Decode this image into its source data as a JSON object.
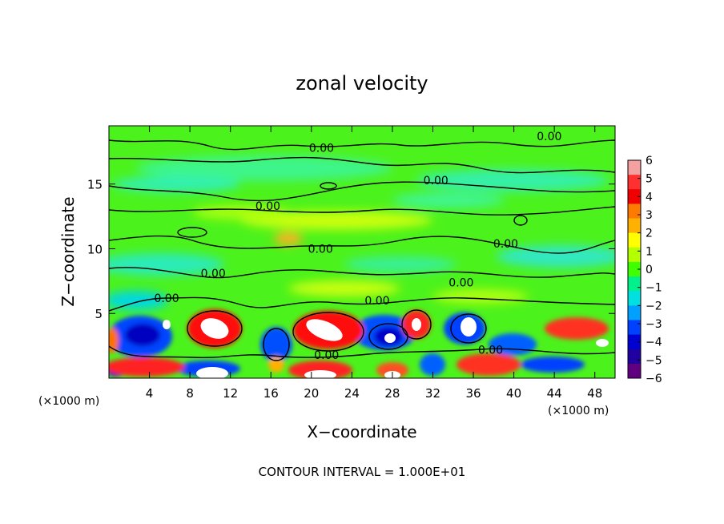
{
  "chart_data": {
    "type": "heatmap",
    "title": "zonal velocity",
    "xlabel": "X−coordinate",
    "ylabel": "Z−coordinate",
    "x_unit_label": "(×1000 m)",
    "z_unit_label": "(×1000 m)",
    "xlim": [
      0,
      50
    ],
    "ylim": [
      0,
      19.5
    ],
    "x_ticks": [
      4,
      8,
      12,
      16,
      20,
      24,
      28,
      32,
      36,
      40,
      44,
      48
    ],
    "x_tick_labels": [
      "4",
      "8",
      "12",
      "16",
      "20",
      "24",
      "28",
      "32",
      "36",
      "40",
      "44",
      "48"
    ],
    "y_ticks": [
      5,
      10,
      15
    ],
    "y_tick_labels": [
      "5",
      "10",
      "15"
    ],
    "colorbar": {
      "min": -6,
      "max": 6,
      "ticks": [
        6,
        5,
        4,
        3,
        2,
        1,
        0,
        -1,
        -2,
        -3,
        -4,
        -5,
        -6
      ],
      "tick_labels": [
        "6",
        "5",
        "4",
        "3",
        "2",
        "1",
        "0",
        "−1",
        "−2",
        "−3",
        "−4",
        "−5",
        "−6"
      ],
      "colors": [
        "#f4a0a0",
        "#ff3030",
        "#f00000",
        "#ff7a00",
        "#ffb000",
        "#ffff00",
        "#b4ff00",
        "#40ff00",
        "#00f08c",
        "#00e0e0",
        "#00a0ff",
        "#0040ff",
        "#0000d0",
        "#2000a0",
        "#600080"
      ]
    },
    "contour_labels": [
      "0.00",
      "0.00",
      "0.00",
      "0.00",
      "0.00",
      "0.00",
      "0.00",
      "0.00",
      "0.00",
      "0.00",
      "0.00",
      "0.00"
    ],
    "contour_label_positions": [
      [
        21,
        17.8
      ],
      [
        43.5,
        18.7
      ],
      [
        32.3,
        15.3
      ],
      [
        15.7,
        13.3
      ],
      [
        20.9,
        10.0
      ],
      [
        10.3,
        8.1
      ],
      [
        5.7,
        6.2
      ],
      [
        34.8,
        7.4
      ],
      [
        26.5,
        6.0
      ],
      [
        39.2,
        10.4
      ],
      [
        21.5,
        1.8
      ],
      [
        37.7,
        2.2
      ]
    ],
    "caption": "CONTOUR INTERVAL = 1.000E+01"
  }
}
